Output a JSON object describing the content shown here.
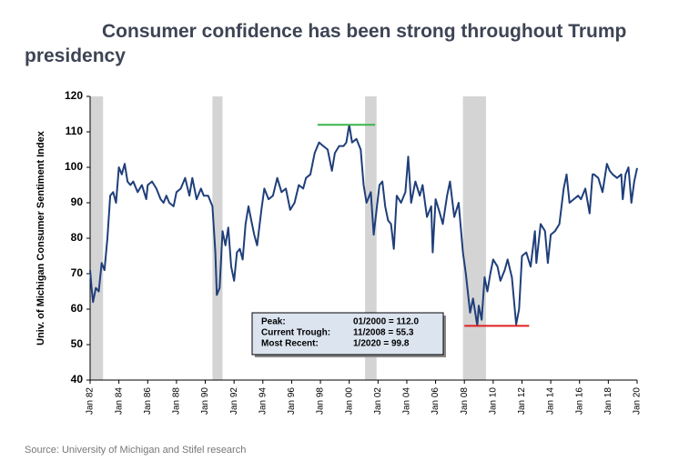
{
  "chart_data": {
    "type": "line",
    "title": "Consumer confidence has been strong throughout Trump presidency",
    "y_label": "Univ. of Michigan Consumer Sentiment Index",
    "source": "Source: University of Michigan and Stifel research",
    "xlim": [
      1982,
      2020
    ],
    "ylim": [
      40,
      120
    ],
    "yticks": [
      40,
      50,
      60,
      70,
      80,
      90,
      100,
      110,
      120
    ],
    "xticks": [
      {
        "value": 1982,
        "label": "Jan 82"
      },
      {
        "value": 1984,
        "label": "Jan 84"
      },
      {
        "value": 1986,
        "label": "Jan 86"
      },
      {
        "value": 1988,
        "label": "Jan 88"
      },
      {
        "value": 1990,
        "label": "Jan 90"
      },
      {
        "value": 1992,
        "label": "Jan 92"
      },
      {
        "value": 1994,
        "label": "Jan 94"
      },
      {
        "value": 1996,
        "label": "Jan 96"
      },
      {
        "value": 1998,
        "label": "Jan 98"
      },
      {
        "value": 2000,
        "label": "Jan 00"
      },
      {
        "value": 2002,
        "label": "Jan 02"
      },
      {
        "value": 2004,
        "label": "Jan 04"
      },
      {
        "value": 2006,
        "label": "Jan 06"
      },
      {
        "value": 2008,
        "label": "Jan 08"
      },
      {
        "value": 2010,
        "label": "Jan 10"
      },
      {
        "value": 2012,
        "label": "Jan 12"
      },
      {
        "value": 2014,
        "label": "Jan 14"
      },
      {
        "value": 2016,
        "label": "Jan 16"
      },
      {
        "value": 2018,
        "label": "Jan 18"
      },
      {
        "value": 2020,
        "label": "Jan 20"
      }
    ],
    "shade_color": "#d4d4d4",
    "shaded_periods": [
      {
        "start": 1982.0,
        "end": 1982.9
      },
      {
        "start": 1990.5,
        "end": 1991.2
      },
      {
        "start": 2001.1,
        "end": 2001.9
      },
      {
        "start": 2007.9,
        "end": 2009.5
      }
    ],
    "reference_lines": [
      {
        "value": 112.0,
        "start": 1997.8,
        "end": 2001.8,
        "color": "#3cb44b"
      },
      {
        "value": 55.3,
        "start": 2008.0,
        "end": 2012.5,
        "color": "#e02020"
      }
    ],
    "annotation": [
      [
        "Peak:",
        "01/2000 = 112.0"
      ],
      [
        "Current Trough:",
        "11/2008 = 55.3"
      ],
      [
        "Most Recent:",
        "1/2020 = 99.8"
      ]
    ],
    "x": [
      1982.0,
      1982.1,
      1982.2,
      1982.4,
      1982.6,
      1982.8,
      1983.0,
      1983.2,
      1983.4,
      1983.6,
      1983.8,
      1984.0,
      1984.2,
      1984.4,
      1984.6,
      1984.8,
      1985.0,
      1985.3,
      1985.6,
      1985.9,
      1986.0,
      1986.3,
      1986.6,
      1986.9,
      1987.1,
      1987.3,
      1987.5,
      1987.8,
      1988.0,
      1988.3,
      1988.6,
      1988.9,
      1989.1,
      1989.4,
      1989.7,
      1989.9,
      1990.2,
      1990.5,
      1990.7,
      1990.8,
      1991.0,
      1991.2,
      1991.4,
      1991.6,
      1991.8,
      1992.0,
      1992.2,
      1992.4,
      1992.6,
      1992.8,
      1993.0,
      1993.2,
      1993.4,
      1993.6,
      1993.9,
      1994.1,
      1994.4,
      1994.7,
      1995.0,
      1995.3,
      1995.6,
      1995.9,
      1996.2,
      1996.5,
      1996.8,
      1997.0,
      1997.3,
      1997.6,
      1997.9,
      1998.2,
      1998.5,
      1998.8,
      1999.0,
      1999.3,
      1999.6,
      1999.8,
      2000.0,
      2000.2,
      2000.5,
      2000.8,
      2001.0,
      2001.2,
      2001.5,
      2001.7,
      2001.9,
      2002.1,
      2002.3,
      2002.5,
      2002.7,
      2002.9,
      2003.1,
      2003.3,
      2003.6,
      2003.9,
      2004.1,
      2004.3,
      2004.6,
      2004.9,
      2005.1,
      2005.4,
      2005.7,
      2005.8,
      2006.0,
      2006.3,
      2006.5,
      2006.8,
      2007.0,
      2007.3,
      2007.6,
      2007.9,
      2008.1,
      2008.4,
      2008.6,
      2008.9,
      2009.0,
      2009.2,
      2009.4,
      2009.6,
      2009.8,
      2010.0,
      2010.3,
      2010.5,
      2010.8,
      2011.0,
      2011.3,
      2011.6,
      2011.8,
      2012.0,
      2012.3,
      2012.6,
      2012.9,
      2013.0,
      2013.3,
      2013.6,
      2013.8,
      2014.0,
      2014.3,
      2014.6,
      2014.9,
      2015.1,
      2015.3,
      2015.6,
      2015.9,
      2016.1,
      2016.4,
      2016.7,
      2016.9,
      2017.0,
      2017.3,
      2017.6,
      2017.9,
      2018.1,
      2018.3,
      2018.6,
      2018.9,
      2019.0,
      2019.2,
      2019.4,
      2019.6,
      2019.8,
      2020.0
    ],
    "series": [
      {
        "color": "#1f3f7a",
        "values": [
          71,
          66,
          62,
          66,
          65,
          73,
          71,
          80,
          92,
          93,
          90,
          100,
          98,
          101,
          96,
          95,
          96,
          93,
          95,
          91,
          95,
          96,
          94,
          91,
          90,
          92,
          90,
          89,
          93,
          94,
          97,
          92,
          97,
          91,
          94,
          92,
          92,
          89,
          76,
          64,
          66,
          82,
          78,
          83,
          72,
          68,
          76,
          77,
          74,
          84,
          89,
          85,
          81,
          78,
          88,
          94,
          91,
          92,
          97,
          93,
          94,
          88,
          90,
          95,
          94,
          97,
          98,
          104,
          107,
          106,
          105,
          99,
          104,
          106,
          106,
          107,
          112,
          107,
          108,
          105,
          95,
          90,
          93,
          81,
          88,
          95,
          96,
          89,
          85,
          84,
          77,
          92,
          90,
          93,
          103,
          90,
          96,
          92,
          95,
          86,
          89,
          76,
          91,
          87,
          84,
          92,
          96,
          86,
          90,
          76,
          70,
          59,
          63,
          55.3,
          61,
          57,
          69,
          65,
          70,
          74,
          72,
          68,
          71,
          74,
          69,
          55.7,
          60,
          75,
          76,
          72,
          82,
          73,
          84,
          82,
          73,
          81,
          82,
          84,
          94,
          98,
          90,
          91,
          92,
          91,
          94,
          87,
          98,
          98,
          97,
          93,
          101,
          99,
          98,
          97,
          98,
          91,
          98,
          100,
          90,
          96,
          99.8
        ]
      }
    ]
  }
}
